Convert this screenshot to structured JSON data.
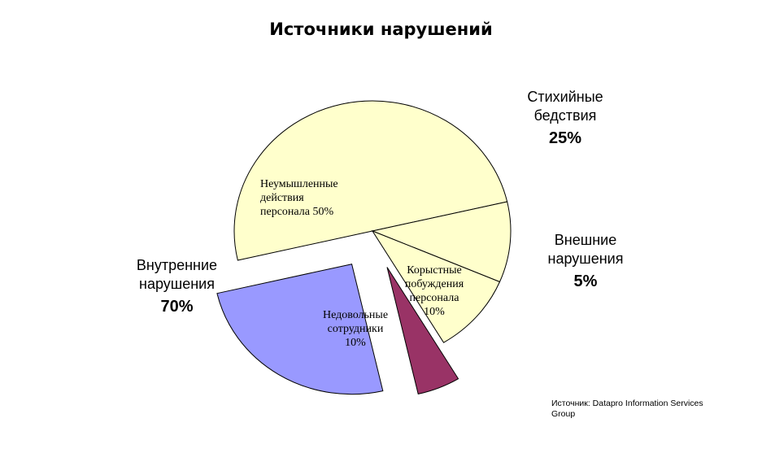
{
  "chart_data": {
    "type": "pie",
    "title": "Источники нарушений",
    "slices": [
      {
        "name": "Неумышленные действия персонала",
        "label": "Неумышленные действия персонала 50%",
        "value": 50,
        "group": "Внутренние нарушения",
        "color": "#FFFFCC"
      },
      {
        "name": "Недовольные сотрудники",
        "label": "Недовольные сотрудники 10%",
        "value": 10,
        "group": "Внутренние нарушения",
        "color": "#FFFFCC"
      },
      {
        "name": "Корыстные побуждения персонала",
        "label": "Корыстные побуждения персонала 10%",
        "value": 10,
        "group": "Внутренние нарушения",
        "color": "#FFFFCC"
      },
      {
        "name": "Внешние нарушения",
        "value": 5,
        "exploded": true,
        "color": "#993366"
      },
      {
        "name": "Стихийные бедствия",
        "value": 25,
        "exploded": true,
        "color": "#9999FF"
      }
    ],
    "groups": [
      {
        "name": "Внутренние нарушения",
        "value": 70
      },
      {
        "name": "Стихийные бедствия",
        "value": 25
      },
      {
        "name": "Внешние нарушения",
        "value": 5
      }
    ]
  },
  "labels": {
    "internal": {
      "line1": "Внутренние",
      "line2": "нарушения",
      "pct": "70%"
    },
    "disasters": {
      "line1": "Стихийные",
      "line2": "бедствия",
      "pct": "25%"
    },
    "external": {
      "line1": "Внешние",
      "line2": "нарушения",
      "pct": "5%"
    },
    "slice_accidental": {
      "line1": "Неумышленные",
      "line2": "действия",
      "line3": "персонала 50%"
    },
    "slice_disgruntled": {
      "line1": "Недовольные",
      "line2": "сотрудники",
      "line3": "10%"
    },
    "slice_greed": {
      "line1": "Корыстные",
      "line2": "побуждения",
      "line3": "персонала",
      "line4": "10%"
    }
  },
  "source": {
    "line1": "Источник: Datapro Information Services",
    "line2": "Group"
  }
}
